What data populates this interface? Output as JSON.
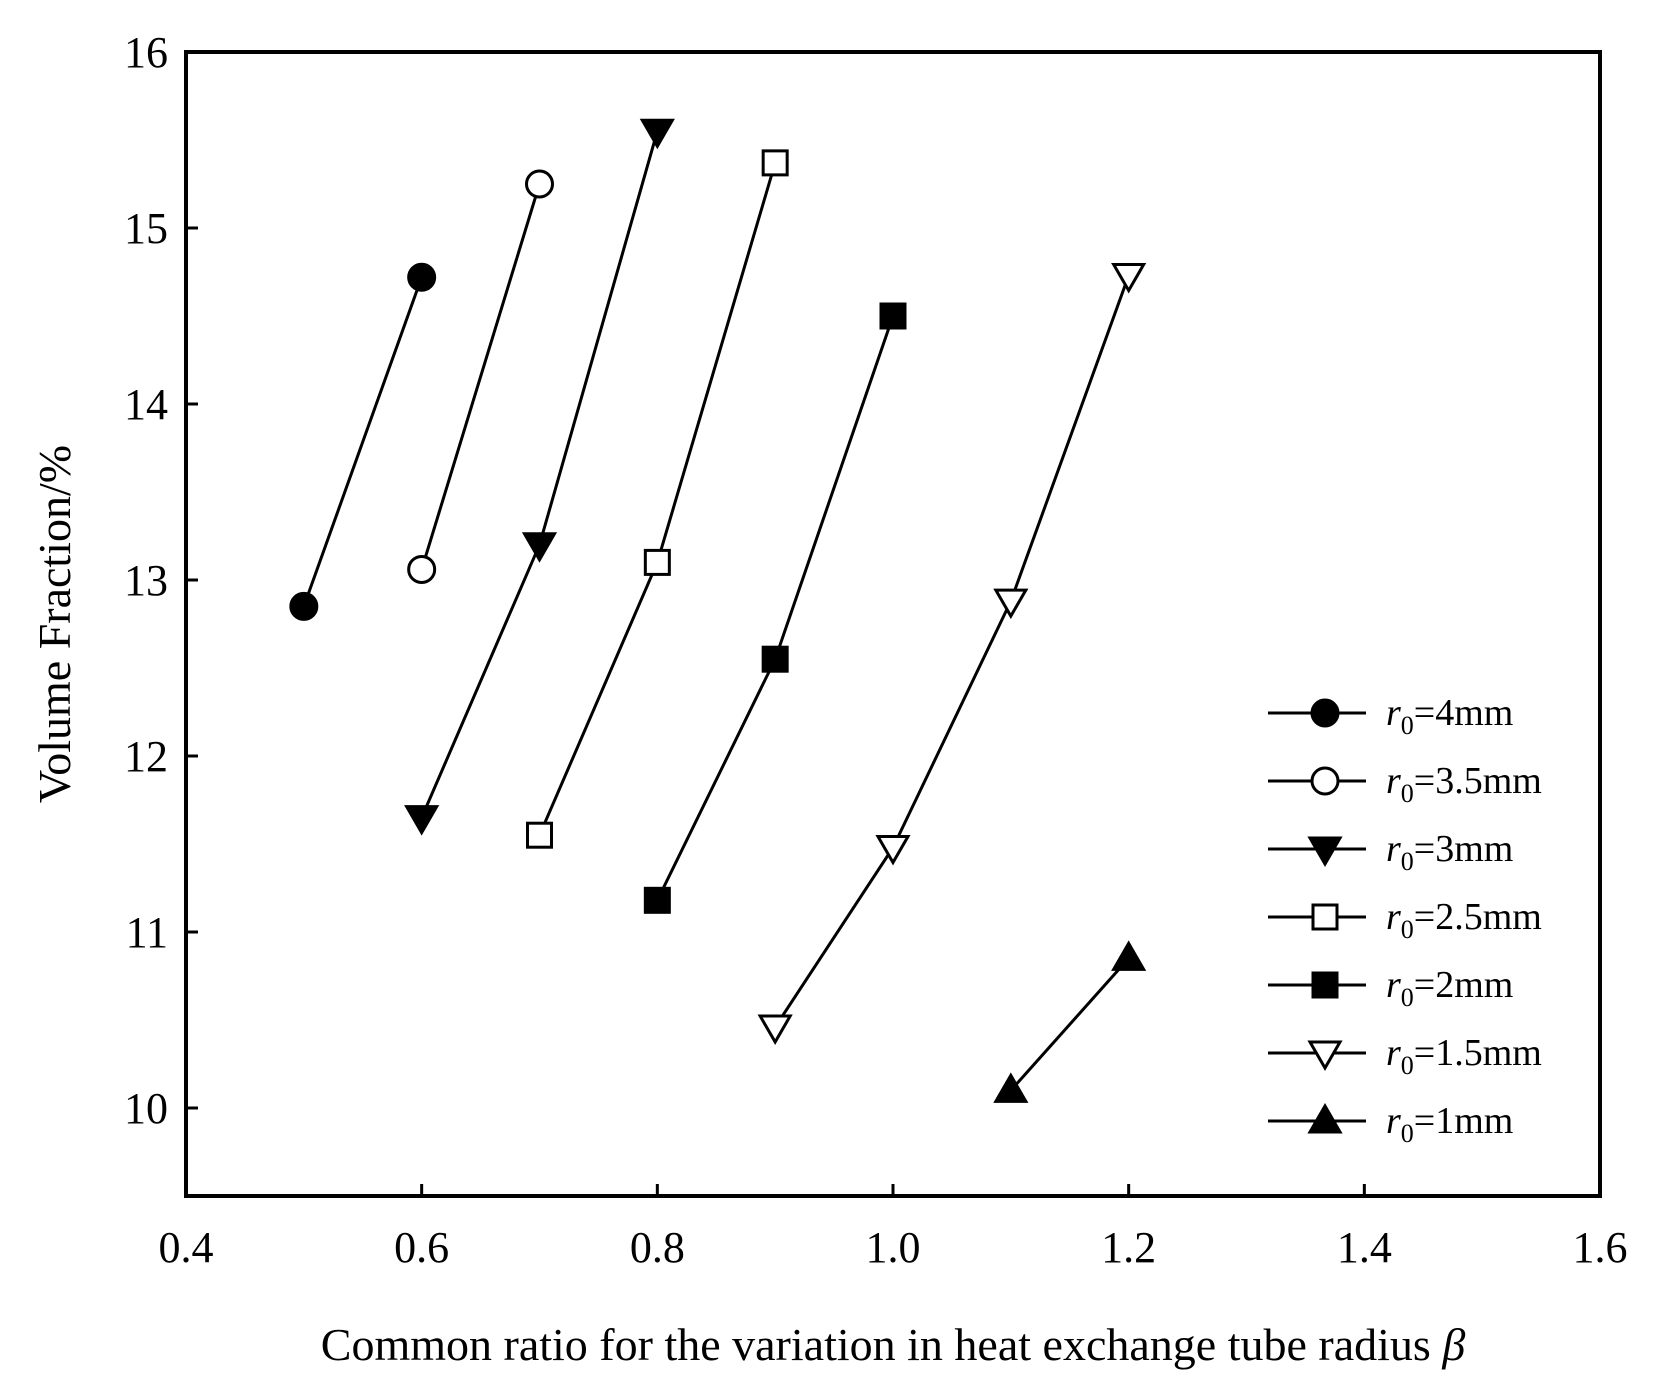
{
  "chart_data": {
    "type": "line",
    "title": "",
    "xlabel": "Common ratio for the variation in heat exchange tube radius",
    "xlabel_symbol": "β",
    "ylabel": "Volume Fraction/%",
    "xlim": [
      0.4,
      1.6
    ],
    "ylim": [
      9.5,
      16
    ],
    "xticks": [
      0.4,
      0.6,
      0.8,
      1.0,
      1.2,
      1.4,
      1.6
    ],
    "xtick_labels": [
      "0.4",
      "0.6",
      "0.8",
      "1.0",
      "1.2",
      "1.4",
      "1.6"
    ],
    "yticks": [
      10,
      11,
      12,
      13,
      14,
      15,
      16
    ],
    "ytick_labels": [
      "10",
      "11",
      "12",
      "13",
      "14",
      "15",
      "16"
    ],
    "grid": false,
    "legend_position": "bottom-right",
    "series": [
      {
        "label_var": "r",
        "label_sub": "0",
        "label_rest": "=4mm",
        "marker": "circle",
        "filled": true,
        "x": [
          0.5,
          0.6
        ],
        "y": [
          12.85,
          14.72
        ]
      },
      {
        "label_var": "r",
        "label_sub": "0",
        "label_rest": "=3.5mm",
        "marker": "circle",
        "filled": false,
        "x": [
          0.6,
          0.7
        ],
        "y": [
          13.06,
          15.25
        ]
      },
      {
        "label_var": "r",
        "label_sub": "0",
        "label_rest": "=3mm",
        "marker": "triangle-down",
        "filled": true,
        "x": [
          0.6,
          0.7,
          0.8
        ],
        "y": [
          11.65,
          13.2,
          15.55
        ]
      },
      {
        "label_var": "r",
        "label_sub": "0",
        "label_rest": "=2.5mm",
        "marker": "square",
        "filled": false,
        "x": [
          0.7,
          0.8,
          0.9
        ],
        "y": [
          11.55,
          13.1,
          15.37
        ]
      },
      {
        "label_var": "r",
        "label_sub": "0",
        "label_rest": "=2mm",
        "marker": "square",
        "filled": true,
        "x": [
          0.8,
          0.9,
          1.0
        ],
        "y": [
          11.18,
          12.55,
          14.5
        ]
      },
      {
        "label_var": "r",
        "label_sub": "0",
        "label_rest": "=1.5mm",
        "marker": "triangle-down",
        "filled": false,
        "x": [
          0.9,
          1.0,
          1.1,
          1.2
        ],
        "y": [
          10.46,
          11.48,
          12.88,
          14.73
        ]
      },
      {
        "label_var": "r",
        "label_sub": "0",
        "label_rest": "=1mm",
        "marker": "triangle-up",
        "filled": true,
        "x": [
          1.1,
          1.2
        ],
        "y": [
          10.1,
          10.85
        ]
      }
    ]
  }
}
